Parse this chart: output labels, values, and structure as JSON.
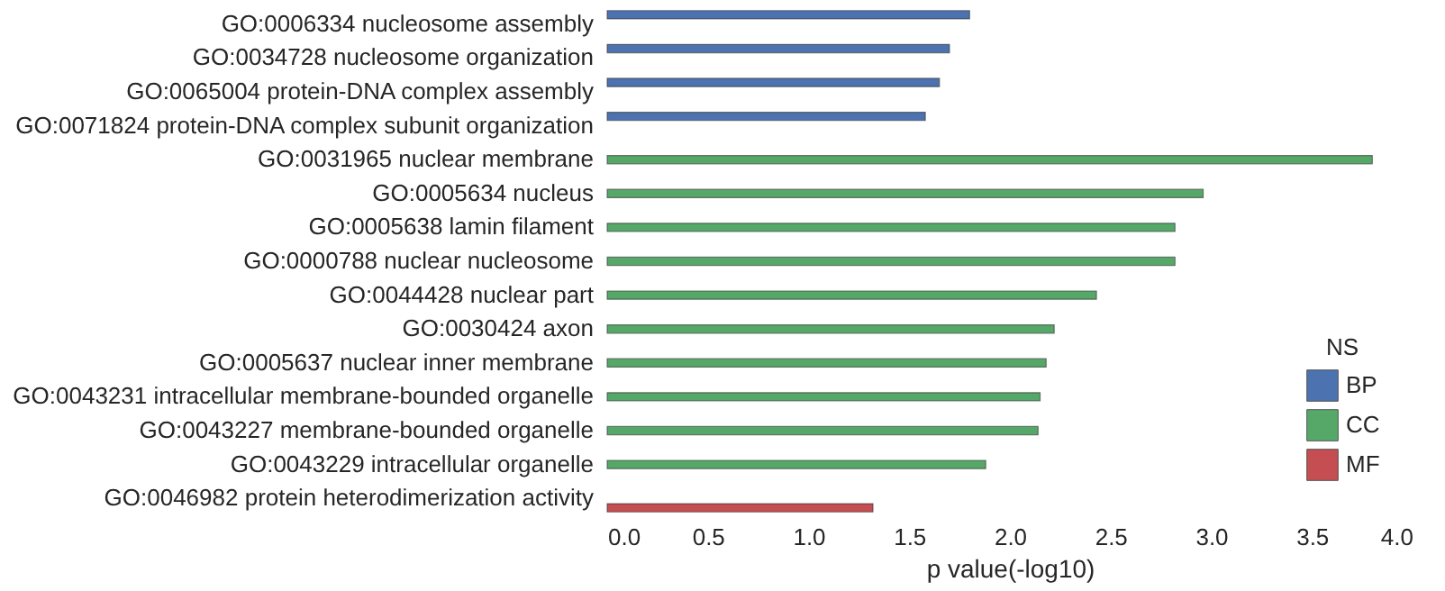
{
  "chart_data": {
    "type": "bar",
    "orientation": "horizontal",
    "xlabel": "p value(-log10)",
    "legend_title": "NS",
    "legend": "bottom right",
    "grid": false,
    "categories": [
      "GO:0006334 nucleosome assembly",
      "GO:0034728 nucleosome organization",
      "GO:0065004 protein-DNA complex assembly",
      "GO:0071824 protein-DNA complex subunit organization",
      "GO:0031965 nuclear membrane",
      "GO:0005634 nucleus",
      "GO:0005638 lamin filament",
      "GO:0000788 nuclear nucleosome",
      "GO:0044428 nuclear part",
      "GO:0030424 axon",
      "GO:0005637 nuclear inner membrane",
      "GO:0043231 intracellular membrane-bounded organelle",
      "GO:0043227 membrane-bounded organelle",
      "GO:0043229 intracellular organelle",
      "GO:0046982 protein heterodimerization activity"
    ],
    "series": [
      {
        "name": "BP",
        "color": "#4c72b0",
        "values": [
          1.8,
          1.7,
          1.65,
          1.58,
          null,
          null,
          null,
          null,
          null,
          null,
          null,
          null,
          null,
          null,
          null
        ]
      },
      {
        "name": "CC",
        "color": "#55a868",
        "values": [
          null,
          null,
          null,
          null,
          3.8,
          2.96,
          2.82,
          2.82,
          2.43,
          2.22,
          2.18,
          2.15,
          2.14,
          1.88,
          null
        ]
      },
      {
        "name": "MF",
        "color": "#c44e52",
        "values": [
          null,
          null,
          null,
          null,
          null,
          null,
          null,
          null,
          null,
          null,
          null,
          null,
          null,
          null,
          1.32
        ]
      }
    ],
    "xlim": [
      0,
      4.0
    ],
    "xticks": [
      {
        "value": 0,
        "label": "0.0"
      },
      0.5,
      {
        "value": 1,
        "label": "1.0"
      },
      1.5,
      {
        "value": 2,
        "label": "2.0"
      },
      2.5,
      {
        "value": 3,
        "label": "3.0"
      },
      3.5,
      {
        "value": 4,
        "label": "4.0"
      }
    ]
  }
}
